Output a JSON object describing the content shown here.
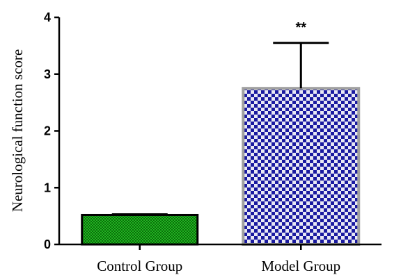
{
  "chart_data": {
    "type": "bar",
    "title": "",
    "xlabel": "",
    "ylabel": "Neurological function score",
    "categories": [
      "Control Group",
      "Model Group"
    ],
    "values": [
      0.52,
      2.75
    ],
    "error_upper": [
      0.53,
      3.55
    ],
    "annotations": [
      "",
      "**"
    ],
    "ylim": [
      0,
      4
    ],
    "yticks": [
      "0",
      "1",
      "2",
      "3",
      "4"
    ],
    "grid": false,
    "legend": "none",
    "colors": {
      "control_fill": "#22b422",
      "control_pattern": "#0a6e0a",
      "model_fill": "#1a1aa0",
      "model_pattern": "#e8e8f4",
      "model_border": "#a0a0a0"
    }
  }
}
